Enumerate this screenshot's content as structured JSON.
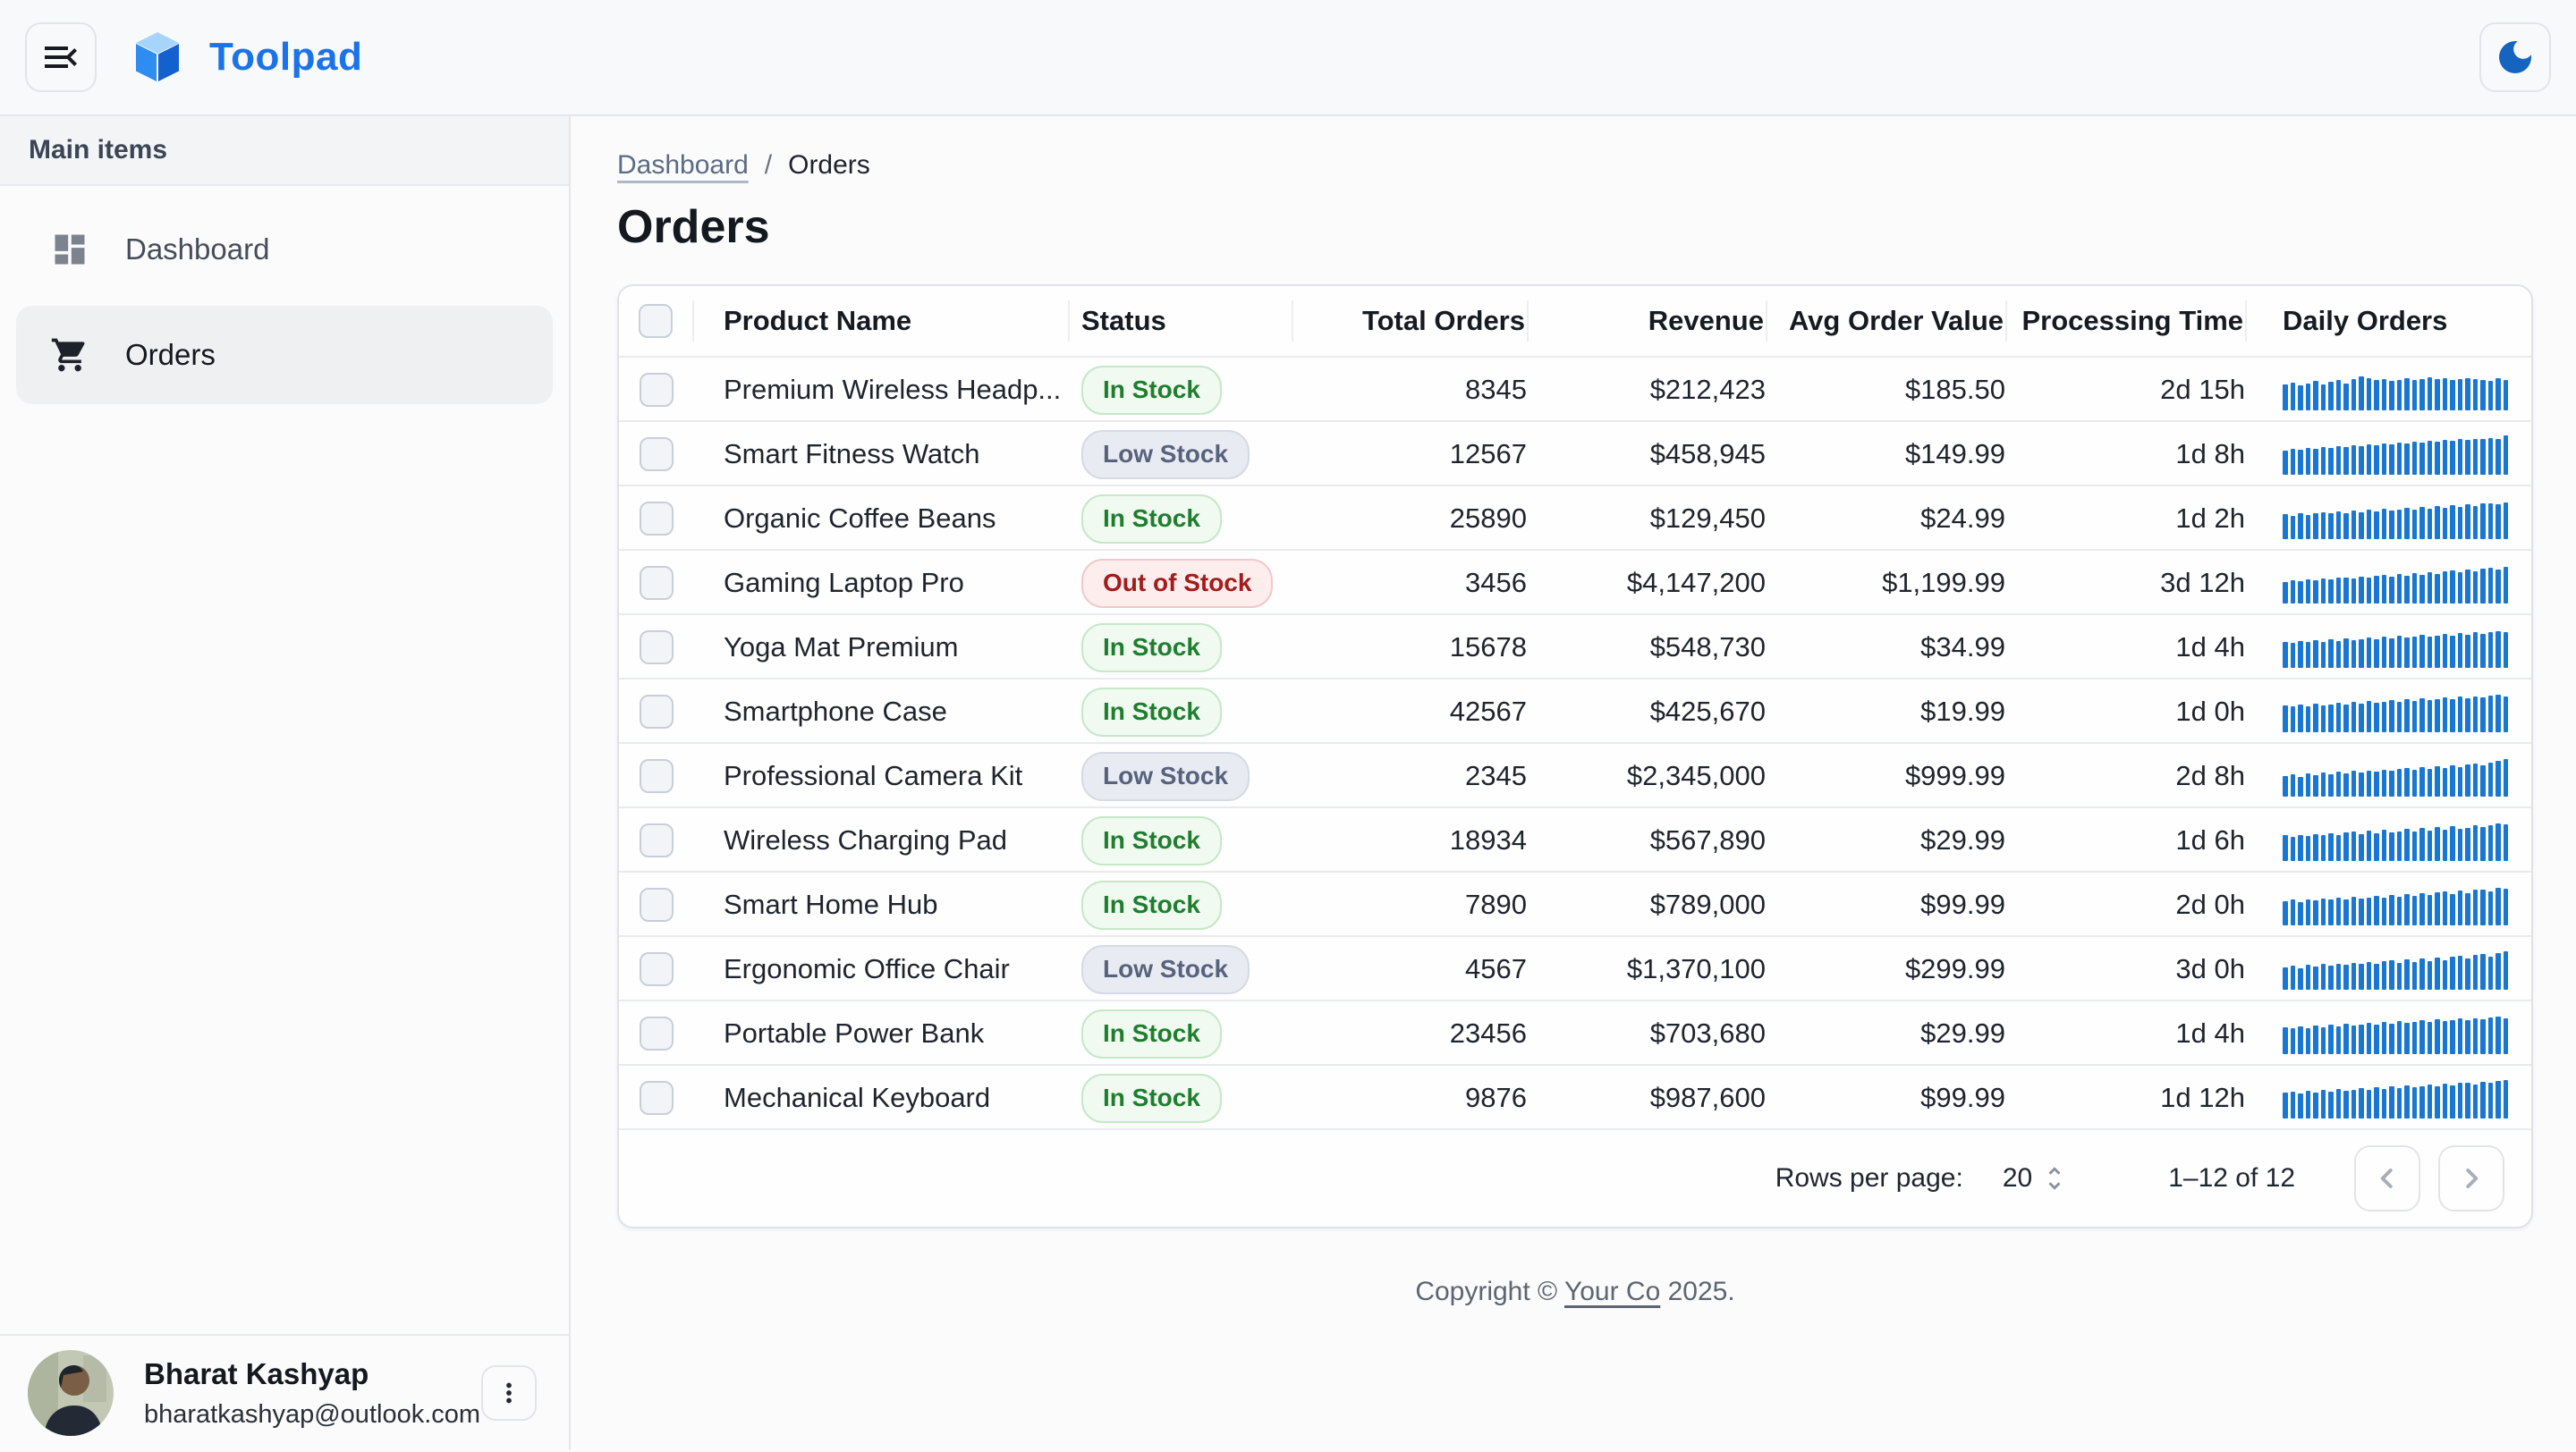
{
  "appbar": {
    "brand": "Toolpad"
  },
  "colors": {
    "accent": "#1A73E8",
    "moon": "#1565C0",
    "spark_bar": "#1976D2",
    "status": {
      "in_stock": {
        "fg": "#1E7E2E",
        "bg": "#F0FAF0",
        "border": "#C5E8C8"
      },
      "low_stock": {
        "fg": "#57637D",
        "bg": "#E9EBF2",
        "border": "#D6DAE4"
      },
      "out_of_stock": {
        "fg": "#A31B1B",
        "bg": "#FDEDED",
        "border": "#F3C8C8"
      }
    }
  },
  "sidebar": {
    "section_label": "Main items",
    "items": [
      {
        "label": "Dashboard",
        "icon": "dashboard-icon",
        "selected": false
      },
      {
        "label": "Orders",
        "icon": "cart-icon",
        "selected": true
      }
    ]
  },
  "user": {
    "name": "Bharat Kashyap",
    "email": "bharatkashyap@outlook.com"
  },
  "breadcrumb": {
    "parent": "Dashboard",
    "separator": "/",
    "current": "Orders"
  },
  "page": {
    "title": "Orders"
  },
  "table": {
    "columns": [
      {
        "label": "Product Name",
        "align": "left"
      },
      {
        "label": "Status",
        "align": "left"
      },
      {
        "label": "Total Orders",
        "align": "right"
      },
      {
        "label": "Revenue",
        "align": "right"
      },
      {
        "label": "Avg Order Value",
        "align": "right"
      },
      {
        "label": "Processing Time",
        "align": "right"
      },
      {
        "label": "Daily Orders",
        "align": "left"
      }
    ],
    "rows": [
      {
        "name": "Premium Wireless Headp...",
        "status_label": "In Stock",
        "status_variant": "in_stock",
        "total_orders": "8345",
        "revenue": "$212,423",
        "avg_order_value": "$185.50",
        "processing_time": "2d 15h",
        "spark": [
          62,
          68,
          60,
          66,
          72,
          64,
          70,
          74,
          66,
          76,
          82,
          78,
          74,
          76,
          72,
          75,
          78,
          74,
          77,
          80,
          76,
          78,
          75,
          77,
          79,
          76,
          74,
          72,
          78,
          73
        ]
      },
      {
        "name": "Smart Fitness Watch",
        "status_label": "Low Stock",
        "status_variant": "low_stock",
        "total_orders": "12567",
        "revenue": "$458,945",
        "avg_order_value": "$149.99",
        "processing_time": "1d 8h",
        "spark": [
          58,
          62,
          60,
          66,
          64,
          68,
          66,
          70,
          68,
          72,
          70,
          74,
          72,
          76,
          74,
          78,
          76,
          80,
          78,
          82,
          80,
          84,
          82,
          86,
          84,
          88,
          86,
          90,
          88,
          95
        ]
      },
      {
        "name": "Organic Coffee Beans",
        "status_label": "In Stock",
        "status_variant": "in_stock",
        "total_orders": "25890",
        "revenue": "$129,450",
        "avg_order_value": "$24.99",
        "processing_time": "1d 2h",
        "spark": [
          60,
          56,
          62,
          58,
          64,
          66,
          62,
          68,
          64,
          70,
          66,
          72,
          68,
          74,
          70,
          72,
          76,
          72,
          78,
          74,
          80,
          76,
          82,
          78,
          84,
          80,
          86,
          88,
          84,
          90
        ]
      },
      {
        "name": "Gaming Laptop Pro",
        "status_label": "Out of Stock",
        "status_variant": "out_of_stock",
        "total_orders": "3456",
        "revenue": "$4,147,200",
        "avg_order_value": "$1,199.99",
        "processing_time": "3d 12h",
        "spark": [
          52,
          56,
          54,
          58,
          56,
          60,
          58,
          62,
          64,
          60,
          66,
          62,
          68,
          70,
          66,
          72,
          68,
          74,
          70,
          76,
          72,
          78,
          80,
          76,
          82,
          78,
          84,
          86,
          82,
          90
        ]
      },
      {
        "name": "Yoga Mat Premium",
        "status_label": "In Stock",
        "status_variant": "in_stock",
        "total_orders": "15678",
        "revenue": "$548,730",
        "avg_order_value": "$34.99",
        "processing_time": "1d 4h",
        "spark": [
          64,
          60,
          66,
          62,
          68,
          64,
          70,
          66,
          72,
          68,
          70,
          74,
          70,
          76,
          72,
          78,
          74,
          76,
          80,
          76,
          78,
          82,
          78,
          84,
          80,
          86,
          82,
          88,
          90,
          86
        ]
      },
      {
        "name": "Smartphone Case",
        "status_label": "In Stock",
        "status_variant": "in_stock",
        "total_orders": "42567",
        "revenue": "$425,670",
        "avg_order_value": "$19.99",
        "processing_time": "1d 0h",
        "spark": [
          66,
          62,
          68,
          64,
          70,
          66,
          68,
          72,
          68,
          74,
          70,
          76,
          72,
          74,
          78,
          74,
          80,
          76,
          82,
          78,
          80,
          84,
          80,
          86,
          82,
          88,
          84,
          90,
          92,
          88
        ]
      },
      {
        "name": "Professional Camera Kit",
        "status_label": "Low Stock",
        "status_variant": "low_stock",
        "total_orders": "2345",
        "revenue": "$2,345,000",
        "avg_order_value": "$999.99",
        "processing_time": "2d 8h",
        "spark": [
          50,
          54,
          48,
          56,
          52,
          58,
          54,
          60,
          56,
          62,
          58,
          64,
          60,
          66,
          62,
          68,
          70,
          66,
          72,
          68,
          74,
          70,
          76,
          72,
          78,
          80,
          76,
          82,
          88,
          92
        ]
      },
      {
        "name": "Wireless Charging Pad",
        "status_label": "In Stock",
        "status_variant": "in_stock",
        "total_orders": "18934",
        "revenue": "$567,890",
        "avg_order_value": "$29.99",
        "processing_time": "1d 6h",
        "spark": [
          62,
          58,
          64,
          60,
          66,
          62,
          68,
          64,
          70,
          72,
          66,
          74,
          68,
          76,
          70,
          72,
          78,
          72,
          80,
          74,
          82,
          76,
          84,
          78,
          80,
          86,
          82,
          88,
          92,
          90
        ]
      },
      {
        "name": "Smart Home Hub",
        "status_label": "In Stock",
        "status_variant": "in_stock",
        "total_orders": "7890",
        "revenue": "$789,000",
        "avg_order_value": "$99.99",
        "processing_time": "2d 0h",
        "spark": [
          58,
          62,
          56,
          64,
          60,
          66,
          62,
          68,
          64,
          70,
          66,
          68,
          72,
          68,
          74,
          70,
          76,
          72,
          78,
          74,
          80,
          82,
          76,
          84,
          78,
          86,
          88,
          82,
          92,
          90
        ]
      },
      {
        "name": "Ergonomic Office Chair",
        "status_label": "Low Stock",
        "status_variant": "low_stock",
        "total_orders": "4567",
        "revenue": "$1,370,100",
        "avg_order_value": "$299.99",
        "processing_time": "3d 0h",
        "spark": [
          54,
          58,
          52,
          60,
          56,
          62,
          58,
          64,
          60,
          66,
          62,
          68,
          64,
          70,
          72,
          66,
          74,
          68,
          76,
          70,
          78,
          72,
          80,
          82,
          76,
          84,
          86,
          80,
          90,
          94
        ]
      },
      {
        "name": "Portable Power Bank",
        "status_label": "In Stock",
        "status_variant": "in_stock",
        "total_orders": "23456",
        "revenue": "$703,680",
        "avg_order_value": "$29.99",
        "processing_time": "1d 4h",
        "spark": [
          66,
          62,
          68,
          64,
          70,
          66,
          72,
          68,
          74,
          70,
          72,
          76,
          72,
          78,
          74,
          80,
          76,
          78,
          82,
          78,
          84,
          80,
          82,
          86,
          82,
          88,
          84,
          90,
          92,
          88
        ]
      },
      {
        "name": "Mechanical Keyboard",
        "status_label": "In Stock",
        "status_variant": "in_stock",
        "total_orders": "9876",
        "revenue": "$987,600",
        "avg_order_value": "$99.99",
        "processing_time": "1d 12h",
        "spark": [
          62,
          66,
          60,
          68,
          64,
          70,
          66,
          72,
          68,
          70,
          74,
          70,
          76,
          72,
          78,
          74,
          80,
          76,
          78,
          82,
          78,
          84,
          80,
          86,
          88,
          82,
          90,
          86,
          92,
          94
        ]
      }
    ]
  },
  "pagination": {
    "rows_per_page_label": "Rows per page:",
    "rows_per_page_value": "20",
    "range_label": "1–12 of 12"
  },
  "footer": {
    "prefix": "Copyright © ",
    "link": "Your Co",
    "suffix": " 2025."
  }
}
